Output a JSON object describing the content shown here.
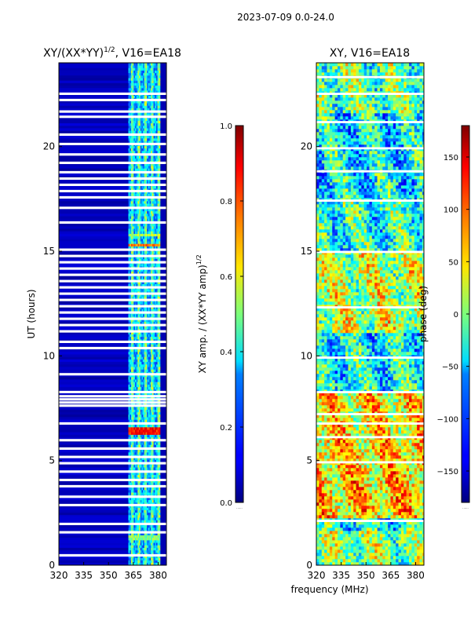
{
  "figure": {
    "suptitle": "2023-07-09 0.0-24.0",
    "shared_xlabel": "frequency (MHz)"
  },
  "chart_data": [
    {
      "type": "heatmap",
      "title": "XY/(XX*YY)",
      "title_exponent": "1/2",
      "title_suffix": ", V16=EA18",
      "xlabel": "",
      "ylabel": "UT (hours)",
      "x_range": [
        320,
        385
      ],
      "y_range": [
        0,
        24
      ],
      "x_ticks": [
        320,
        335,
        350,
        365,
        380
      ],
      "y_ticks": [
        0,
        5,
        10,
        15,
        20
      ],
      "colormap": "jet",
      "data_band_mhz": [
        362,
        381
      ],
      "band_channels_mhz": [
        364,
        368,
        372,
        376,
        380
      ],
      "background_value": 0.05,
      "flagged_ut": [
        0.45,
        1.55,
        1.95,
        2.85,
        3.25,
        3.75,
        4.05,
        4.45,
        4.85,
        5.15,
        5.55,
        5.95,
        6.75,
        7.6,
        7.75,
        7.9,
        8.05,
        8.25,
        9.1,
        10.35,
        10.65,
        11.15,
        11.45,
        11.75,
        12.05,
        12.35,
        12.65,
        12.95,
        13.25,
        13.55,
        13.85,
        14.15,
        14.45,
        14.75,
        15.05,
        16.35,
        17.05,
        17.55,
        17.85,
        18.15,
        18.45,
        18.75,
        19.2,
        19.6,
        20.1,
        20.55,
        21.4,
        21.65,
        22.2,
        22.5
      ],
      "bright_events": [
        {
          "ut_start": 15.15,
          "ut_end": 15.35,
          "value": 0.75
        },
        {
          "ut_start": 15.65,
          "ut_end": 15.8,
          "value": 0.55
        },
        {
          "ut_start": 6.15,
          "ut_end": 6.6,
          "value": 0.85
        },
        {
          "ut_start": 1.2,
          "ut_end": 1.4,
          "value": 0.5
        }
      ],
      "colorbar": {
        "label": "XY amp. / (XX*YY amp)",
        "label_exponent": "1/2",
        "range": [
          0.0,
          1.0
        ],
        "ticks": [
          "0.0",
          "0.2",
          "0.4",
          "0.6",
          "0.8",
          "1.0"
        ],
        "tick_values": [
          0.0,
          0.2,
          0.4,
          0.6,
          0.8,
          1.0
        ],
        "footer": "......"
      }
    },
    {
      "type": "heatmap",
      "title": "XY, V16=EA18",
      "xlabel": "frequency (MHz)",
      "ylabel": "",
      "x_range": [
        320,
        385
      ],
      "y_range": [
        0,
        24
      ],
      "x_ticks": [
        320,
        335,
        350,
        365,
        380
      ],
      "y_ticks": [
        0,
        5,
        10,
        15,
        20
      ],
      "colormap": "jet",
      "value_range": [
        -180,
        180
      ],
      "regions": [
        {
          "ut_start": 0.0,
          "ut_end": 1.6,
          "mean": 0
        },
        {
          "ut_start": 1.6,
          "ut_end": 2.2,
          "mean": -40
        },
        {
          "ut_start": 2.2,
          "ut_end": 6.0,
          "mean": 60
        },
        {
          "ut_start": 6.0,
          "ut_end": 8.2,
          "mean": 50
        },
        {
          "ut_start": 8.2,
          "ut_end": 11.0,
          "mean": -40
        },
        {
          "ut_start": 11.0,
          "ut_end": 15.0,
          "mean": 20
        },
        {
          "ut_start": 15.0,
          "ut_end": 17.5,
          "mean": -30
        },
        {
          "ut_start": 17.5,
          "ut_end": 21.5,
          "mean": -50
        },
        {
          "ut_start": 21.5,
          "ut_end": 24.0,
          "mean": -10
        }
      ],
      "flagged_ut": [
        2.1,
        4.9,
        6.1,
        6.75,
        7.2,
        8.25,
        9.9,
        12.3,
        14.95,
        17.4,
        18.8,
        19.9,
        21.15,
        22.5,
        23.3
      ],
      "colorbar": {
        "label": "phase (deg)",
        "range": [
          -180,
          180
        ],
        "ticks": [
          "−150",
          "−100",
          "−50",
          "0",
          "50",
          "100",
          "150"
        ],
        "tick_values": [
          -150,
          -100,
          -50,
          0,
          50,
          100,
          150
        ],
        "footer": "......"
      }
    }
  ]
}
